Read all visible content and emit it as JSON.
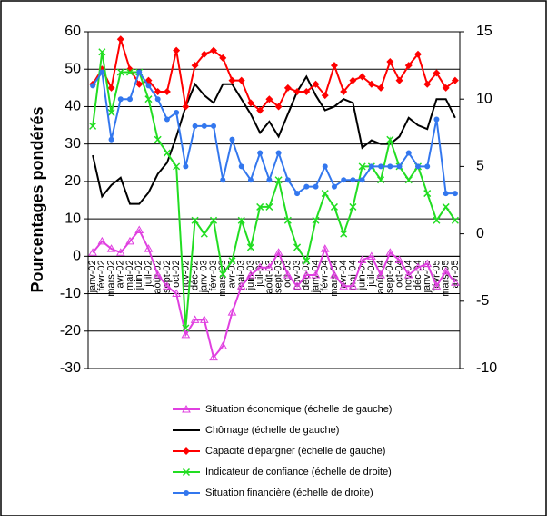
{
  "chart_data": {
    "type": "line",
    "ylabel": "Pourcentages pondérés",
    "categories": [
      "janv-02",
      "févr-02",
      "mars-02",
      "avr-02",
      "mai-02",
      "juin-02",
      "juil-02",
      "août-02",
      "sept-02",
      "oct-02",
      "nov-02",
      "déc-02",
      "janv-03",
      "févr-03",
      "mars-03",
      "avr-03",
      "mai-03",
      "juin-03",
      "juil-03",
      "août-03",
      "sept-03",
      "oct-03",
      "nov-03",
      "déc-03",
      "janv-04",
      "févr-04",
      "mars-04",
      "avr-04",
      "mai-04",
      "juin-04",
      "juil-04",
      "août-04",
      "sept-04",
      "oct-04",
      "nov-04",
      "déc-04",
      "janv-05",
      "févr-05",
      "mars-05",
      "avr-05"
    ],
    "ylim": [
      -30,
      60
    ],
    "yticks": [
      -30,
      -20,
      -10,
      0,
      10,
      20,
      30,
      40,
      50,
      60
    ],
    "y2lim": [
      -10,
      15
    ],
    "y2ticks": [
      -10,
      -5,
      0,
      5,
      10,
      15
    ],
    "grid": true,
    "series": [
      {
        "name": "Situation économique (échelle de gauche)",
        "color": "#e040e0",
        "marker": "triangle",
        "values": [
          1,
          4,
          2,
          1,
          4,
          7,
          2,
          -5,
          -8,
          -10,
          -21,
          -17,
          -17,
          -27,
          -24,
          -15,
          -8,
          -5,
          -3,
          -3,
          1,
          -5,
          -8,
          -5,
          -5,
          2,
          -5,
          -8,
          -8,
          -1,
          0,
          -5,
          1,
          -1,
          -5,
          -3,
          -2,
          -8,
          -4,
          -7
        ]
      },
      {
        "name": "Chômage (échelle de gauche)",
        "color": "#000000",
        "marker": "none",
        "values": [
          27,
          16,
          19,
          21,
          14,
          14,
          17,
          22,
          25,
          32,
          40,
          46,
          43,
          41,
          46,
          46,
          42,
          38,
          33,
          36,
          32,
          38,
          44,
          48,
          43,
          39,
          40,
          42,
          41,
          29,
          31,
          30,
          30,
          32,
          37,
          35,
          34,
          42,
          42,
          37
        ]
      },
      {
        "name": "Capacité d'épargner (échelle de gauche)",
        "color": "#ff0000",
        "marker": "diamond",
        "values": [
          46,
          50,
          45,
          58,
          50,
          46,
          47,
          44,
          44,
          55,
          40,
          51,
          54,
          55,
          53,
          47,
          47,
          41,
          39,
          42,
          40,
          45,
          44,
          44,
          46,
          43,
          51,
          44,
          47,
          48,
          46,
          45,
          52,
          47,
          51,
          54,
          46,
          49,
          45,
          47
        ]
      },
      {
        "name": "Indicateur de confiance (échelle de droite)",
        "color": "#22dd22",
        "marker": "x",
        "axis": "y2",
        "values": [
          8,
          13.5,
          9,
          12,
          12,
          12,
          10,
          7,
          6,
          5,
          -7,
          1,
          0,
          1,
          -3,
          -2,
          1,
          -1,
          2,
          2,
          4,
          1,
          -1,
          -2,
          1,
          3,
          2,
          0,
          2,
          5,
          5,
          4,
          7,
          5,
          4,
          5,
          3,
          1,
          2,
          1
        ]
      },
      {
        "name": "Situation financière (échelle de droite)",
        "color": "#3377ee",
        "marker": "circle",
        "axis": "y2",
        "values": [
          11,
          12,
          7,
          10,
          10,
          12,
          11,
          10,
          8.5,
          9,
          5,
          8,
          8,
          8,
          4,
          7,
          5,
          4,
          6,
          4,
          6,
          4,
          3,
          3.5,
          3.5,
          5,
          3.5,
          4,
          4,
          4,
          5,
          5,
          5,
          5,
          6,
          5,
          5,
          8.5,
          3,
          3
        ]
      }
    ]
  }
}
